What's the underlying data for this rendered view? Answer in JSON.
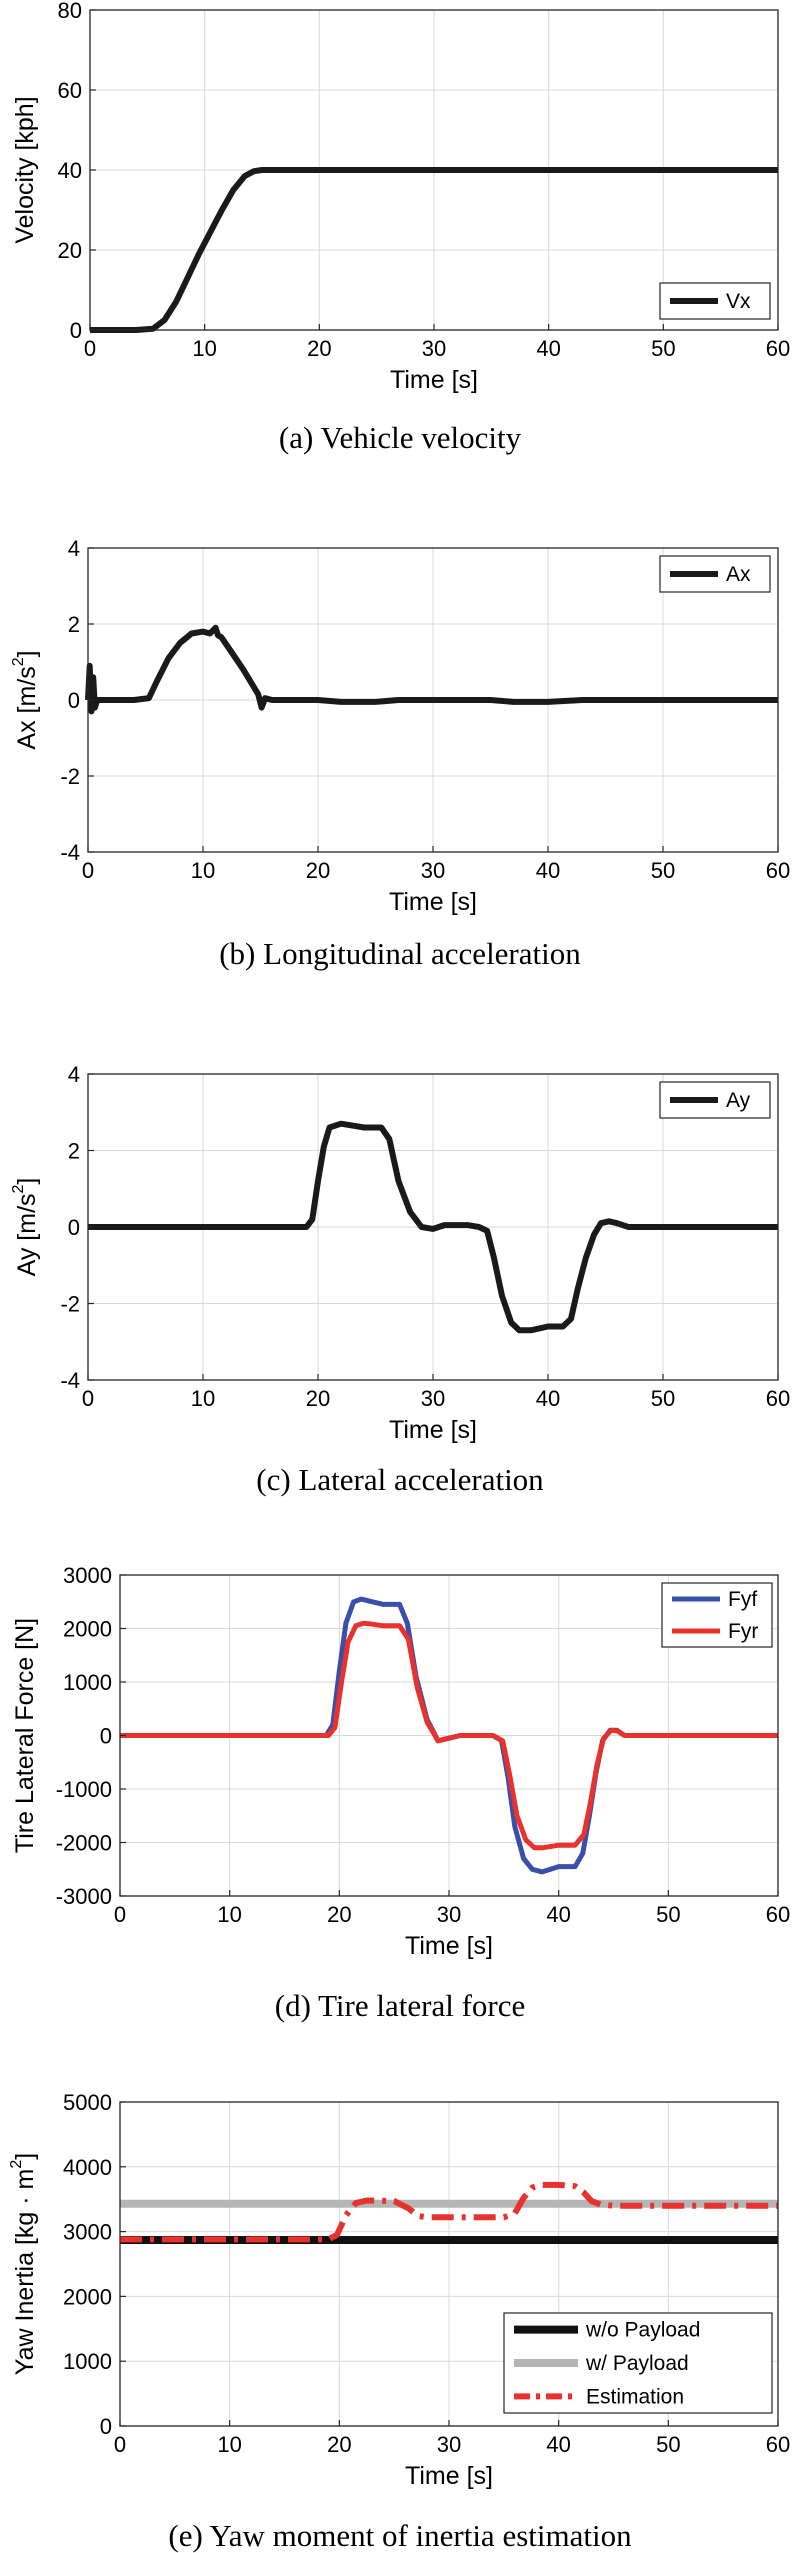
{
  "chart_data": [
    {
      "type": "line",
      "caption": "(a) Vehicle velocity",
      "xlabel": "Time [s]",
      "ylabel": "Velocity [kph]",
      "xlim": [
        0,
        60
      ],
      "ylim": [
        0,
        80
      ],
      "xticks": [
        0,
        10,
        20,
        30,
        40,
        50,
        60
      ],
      "yticks": [
        0,
        20,
        40,
        60,
        80
      ],
      "grid": true,
      "legend_position": "bottom-right",
      "series": [
        {
          "name": "Vx",
          "color": "#1a1a1a",
          "style": "solid",
          "x": [
            0,
            2,
            4,
            5.5,
            6.5,
            7.5,
            8.5,
            9.5,
            10.5,
            11.5,
            12.5,
            13.5,
            14.3,
            15,
            16,
            20,
            30,
            40,
            50,
            60
          ],
          "y": [
            0,
            0,
            0,
            0.3,
            2.5,
            7,
            13,
            19,
            24.5,
            30,
            35,
            38.5,
            39.7,
            40,
            40,
            40,
            40,
            40,
            40,
            40
          ]
        }
      ]
    },
    {
      "type": "line",
      "caption": "(b) Longitudinal acceleration",
      "xlabel": "Time [s]",
      "ylabel": "Ax [m/s",
      "ylabel_sup": "2",
      "ylabel_end": "]",
      "xlim": [
        0,
        60
      ],
      "ylim": [
        -4,
        4
      ],
      "xticks": [
        0,
        10,
        20,
        30,
        40,
        50,
        60
      ],
      "yticks": [
        -4,
        -2,
        0,
        2,
        4
      ],
      "grid": true,
      "legend_position": "top-right",
      "series": [
        {
          "name": "Ax",
          "color": "#1a1a1a",
          "style": "solid",
          "x": [
            0,
            0.15,
            0.3,
            0.45,
            0.6,
            0.8,
            2,
            4,
            5.3,
            6,
            7,
            8,
            9,
            10,
            10.6,
            11.1,
            11.3,
            11.6,
            12.5,
            13.5,
            14.3,
            14.8,
            15.1,
            15.4,
            16,
            20,
            22,
            25,
            27,
            30,
            35,
            37,
            40,
            43,
            50,
            60
          ],
          "y": [
            0,
            0.9,
            -0.3,
            0.6,
            -0.2,
            0,
            0,
            0,
            0.05,
            0.5,
            1.1,
            1.5,
            1.75,
            1.8,
            1.75,
            1.9,
            1.7,
            1.65,
            1.25,
            0.8,
            0.4,
            0.15,
            -0.2,
            0.05,
            0,
            0,
            -0.05,
            -0.05,
            0,
            0,
            0,
            -0.05,
            -0.05,
            0,
            0,
            0
          ]
        }
      ]
    },
    {
      "type": "line",
      "caption": "(c) Lateral acceleration",
      "xlabel": "Time [s]",
      "ylabel": "Ay [m/s",
      "ylabel_sup": "2",
      "ylabel_end": "]",
      "xlim": [
        0,
        60
      ],
      "ylim": [
        -4,
        4
      ],
      "xticks": [
        0,
        10,
        20,
        30,
        40,
        50,
        60
      ],
      "yticks": [
        -4,
        -2,
        0,
        2,
        4
      ],
      "grid": true,
      "legend_position": "top-right",
      "series": [
        {
          "name": "Ay",
          "color": "#1a1a1a",
          "style": "solid",
          "x": [
            0,
            10,
            19,
            19.5,
            20,
            20.5,
            21,
            22,
            23,
            24,
            25.5,
            26.2,
            27,
            28,
            29,
            30,
            31,
            32,
            33,
            34,
            34.7,
            35.3,
            36,
            36.8,
            37.5,
            38.5,
            40,
            41.3,
            42,
            42.6,
            43.3,
            44,
            44.6,
            45.3,
            46,
            47,
            50,
            60
          ],
          "y": [
            0,
            0,
            0,
            0.2,
            1.2,
            2.1,
            2.6,
            2.7,
            2.65,
            2.6,
            2.6,
            2.3,
            1.2,
            0.4,
            0,
            -0.05,
            0.05,
            0.05,
            0.05,
            0,
            -0.1,
            -0.8,
            -1.8,
            -2.5,
            -2.7,
            -2.7,
            -2.6,
            -2.6,
            -2.4,
            -1.6,
            -0.8,
            -0.2,
            0.1,
            0.15,
            0.1,
            0,
            0,
            0
          ]
        }
      ]
    },
    {
      "type": "line",
      "caption": "(d) Tire lateral force",
      "xlabel": "Time [s]",
      "ylabel": "Tire Lateral Force [N]",
      "xlim": [
        0,
        60
      ],
      "ylim": [
        -3000,
        3000
      ],
      "xticks": [
        0,
        10,
        20,
        30,
        40,
        50,
        60
      ],
      "yticks": [
        -3000,
        -2000,
        -1000,
        0,
        1000,
        2000,
        3000
      ],
      "grid": true,
      "legend_position": "top-right",
      "series": [
        {
          "name": "Fyf",
          "color": "#3a50a8",
          "style": "solid",
          "x": [
            0,
            10,
            18.8,
            19.4,
            20,
            20.6,
            21.3,
            22,
            23,
            24,
            25.5,
            26.2,
            27,
            28,
            29,
            30,
            31,
            32,
            33,
            34,
            34.8,
            35.4,
            36,
            36.8,
            37.6,
            38.5,
            40,
            41.5,
            42.2,
            42.8,
            43.4,
            44,
            44.7,
            45.3,
            46,
            47,
            50,
            60
          ],
          "y": [
            0,
            0,
            0,
            200,
            1200,
            2100,
            2500,
            2550,
            2500,
            2450,
            2450,
            2100,
            1100,
            300,
            -100,
            -50,
            0,
            0,
            0,
            0,
            -100,
            -800,
            -1700,
            -2300,
            -2500,
            -2550,
            -2450,
            -2450,
            -2200,
            -1500,
            -700,
            -100,
            100,
            100,
            0,
            0,
            0,
            0
          ]
        },
        {
          "name": "Fyr",
          "color": "#e8322e",
          "style": "solid",
          "x": [
            0,
            10,
            19,
            19.6,
            20.2,
            20.8,
            21.5,
            22.2,
            23,
            24,
            25.5,
            26.3,
            27.1,
            28,
            29,
            30,
            31,
            32,
            33,
            34,
            34.9,
            35.5,
            36.2,
            37,
            37.8,
            38.5,
            40,
            41.5,
            42.3,
            42.9,
            43.5,
            44.1,
            44.8,
            45.4,
            46,
            47,
            50,
            60
          ],
          "y": [
            0,
            0,
            0,
            150,
            1000,
            1750,
            2050,
            2100,
            2080,
            2050,
            2050,
            1800,
            900,
            250,
            -100,
            -50,
            0,
            0,
            0,
            0,
            -100,
            -700,
            -1500,
            -1950,
            -2100,
            -2100,
            -2050,
            -2050,
            -1850,
            -1250,
            -550,
            -50,
            100,
            80,
            0,
            0,
            0,
            0
          ]
        }
      ]
    },
    {
      "type": "line",
      "caption": "(e) Yaw moment of inertia estimation",
      "xlabel": "Time [s]",
      "ylabel": "Yaw Inertia [kg · m",
      "ylabel_sup": "2",
      "ylabel_end": "]",
      "xlim": [
        0,
        60
      ],
      "ylim": [
        0,
        5000
      ],
      "xticks": [
        0,
        10,
        20,
        30,
        40,
        50,
        60
      ],
      "yticks": [
        0,
        1000,
        2000,
        3000,
        4000,
        5000
      ],
      "grid": true,
      "legend_position": "bottom-right",
      "series": [
        {
          "name": "w/o Payload",
          "color": "#111111",
          "style": "solid",
          "x": [
            0,
            60
          ],
          "y": [
            2870,
            2870
          ]
        },
        {
          "name": "w/ Payload",
          "color": "#b5b5b5",
          "style": "solid",
          "x": [
            0,
            60
          ],
          "y": [
            3430,
            3430
          ]
        },
        {
          "name": "Estimation",
          "color": "#e8322e",
          "style": "dashdot",
          "x": [
            0,
            19,
            19.8,
            20.6,
            21.5,
            22.5,
            25,
            26.3,
            27.2,
            28,
            30,
            35,
            36,
            36.8,
            37.6,
            38.5,
            40,
            41.5,
            42.3,
            43,
            43.8,
            45,
            50,
            60
          ],
          "y": [
            2880,
            2880,
            2950,
            3250,
            3440,
            3480,
            3470,
            3360,
            3240,
            3220,
            3220,
            3220,
            3280,
            3520,
            3680,
            3720,
            3720,
            3700,
            3600,
            3470,
            3420,
            3400,
            3400,
            3400
          ]
        }
      ]
    }
  ]
}
